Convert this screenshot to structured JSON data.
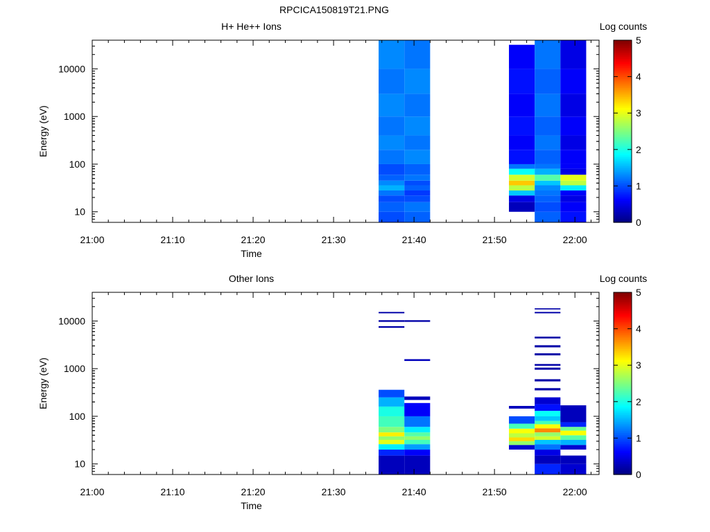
{
  "figure_title": "RPCICA150819T21.PNG",
  "colors": {
    "jet": [
      "#00007f",
      "#0000ff",
      "#007fff",
      "#00ffff",
      "#7fff7f",
      "#ffff00",
      "#ff7f00",
      "#ff0000",
      "#7f0000"
    ],
    "frame": "#000000",
    "background": "#ffffff",
    "gap_rows": "#ffffff"
  },
  "chart_data": [
    {
      "type": "heatmap",
      "title": "H+ He++ Ions",
      "xlabel": "Time",
      "ylabel": "Energy (eV)",
      "x_ticks": [
        "21:00",
        "21:10",
        "21:20",
        "21:30",
        "21:40",
        "21:50",
        "22:00"
      ],
      "x_tick_minutes": [
        0,
        10,
        20,
        30,
        40,
        50,
        60
      ],
      "xlim_minutes": [
        0,
        63
      ],
      "y_scale": "log",
      "ylim": [
        6,
        40000
      ],
      "y_ticks": [
        "10",
        "100",
        "1000",
        "10000"
      ],
      "y_tick_values": [
        10,
        100,
        1000,
        10000
      ],
      "colorbar": {
        "label": "Log counts",
        "range": [
          0,
          5
        ],
        "ticks": [
          "0",
          "1",
          "2",
          "3",
          "4",
          "5"
        ]
      },
      "columns": [
        {
          "t0": 35.6,
          "t1": 38.8,
          "bands": [
            {
              "e0": 6,
              "e1": 10,
              "v": 1.0
            },
            {
              "e0": 10,
              "e1": 16,
              "v": 1.1
            },
            {
              "e0": 16,
              "e1": 22,
              "v": 1.0
            },
            {
              "e0": 22,
              "e1": 28,
              "v": 1.2
            },
            {
              "e0": 28,
              "e1": 36,
              "v": 1.5
            },
            {
              "e0": 36,
              "e1": 45,
              "v": 1.3
            },
            {
              "e0": 45,
              "e1": 60,
              "v": 1.1
            },
            {
              "e0": 60,
              "e1": 100,
              "v": 1.0
            },
            {
              "e0": 100,
              "e1": 200,
              "v": 1.2
            },
            {
              "e0": 200,
              "e1": 400,
              "v": 1.3
            },
            {
              "e0": 400,
              "e1": 1000,
              "v": 1.2
            },
            {
              "e0": 1000,
              "e1": 3000,
              "v": 1.3
            },
            {
              "e0": 3000,
              "e1": 10000,
              "v": 1.2
            },
            {
              "e0": 10000,
              "e1": 40000,
              "v": 1.3
            }
          ]
        },
        {
          "t0": 38.8,
          "t1": 42.0,
          "bands": [
            {
              "e0": 6,
              "e1": 10,
              "v": 1.1
            },
            {
              "e0": 10,
              "e1": 16,
              "v": 1.2
            },
            {
              "e0": 16,
              "e1": 22,
              "v": 1.0
            },
            {
              "e0": 22,
              "e1": 28,
              "v": 0.9
            },
            {
              "e0": 28,
              "e1": 36,
              "v": 1.1
            },
            {
              "e0": 36,
              "e1": 45,
              "v": 1.0
            },
            {
              "e0": 45,
              "e1": 60,
              "v": 1.2
            },
            {
              "e0": 60,
              "e1": 100,
              "v": 1.1
            },
            {
              "e0": 100,
              "e1": 200,
              "v": 1.3
            },
            {
              "e0": 200,
              "e1": 400,
              "v": 1.2
            },
            {
              "e0": 400,
              "e1": 1000,
              "v": 1.3
            },
            {
              "e0": 1000,
              "e1": 3000,
              "v": 1.2
            },
            {
              "e0": 3000,
              "e1": 10000,
              "v": 1.3
            },
            {
              "e0": 10000,
              "e1": 40000,
              "v": 1.2
            }
          ]
        },
        {
          "t0": 51.8,
          "t1": 55.0,
          "bands": [
            {
              "e0": 10,
              "e1": 16,
              "v": 0.3
            },
            {
              "e0": 16,
              "e1": 22,
              "v": 0.5
            },
            {
              "e0": 22,
              "e1": 28,
              "v": 1.6
            },
            {
              "e0": 28,
              "e1": 36,
              "v": 2.8
            },
            {
              "e0": 36,
              "e1": 45,
              "v": 3.4
            },
            {
              "e0": 45,
              "e1": 60,
              "v": 2.9
            },
            {
              "e0": 60,
              "e1": 80,
              "v": 1.9
            },
            {
              "e0": 80,
              "e1": 100,
              "v": 1.2
            },
            {
              "e0": 100,
              "e1": 200,
              "v": 0.7
            },
            {
              "e0": 200,
              "e1": 400,
              "v": 0.6
            },
            {
              "e0": 400,
              "e1": 1000,
              "v": 0.7
            },
            {
              "e0": 1000,
              "e1": 3000,
              "v": 0.6
            },
            {
              "e0": 3000,
              "e1": 10000,
              "v": 0.7
            },
            {
              "e0": 10000,
              "e1": 32000,
              "v": 0.6
            }
          ]
        },
        {
          "t0": 55.0,
          "t1": 58.2,
          "bands": [
            {
              "e0": 6,
              "e1": 10,
              "v": 1.1
            },
            {
              "e0": 10,
              "e1": 16,
              "v": 1.0
            },
            {
              "e0": 16,
              "e1": 22,
              "v": 1.1
            },
            {
              "e0": 22,
              "e1": 28,
              "v": 1.2
            },
            {
              "e0": 28,
              "e1": 36,
              "v": 1.3
            },
            {
              "e0": 36,
              "e1": 45,
              "v": 1.6
            },
            {
              "e0": 45,
              "e1": 60,
              "v": 2.3
            },
            {
              "e0": 60,
              "e1": 80,
              "v": 1.5
            },
            {
              "e0": 80,
              "e1": 100,
              "v": 1.2
            },
            {
              "e0": 100,
              "e1": 200,
              "v": 1.1
            },
            {
              "e0": 200,
              "e1": 400,
              "v": 1.2
            },
            {
              "e0": 400,
              "e1": 1000,
              "v": 1.1
            },
            {
              "e0": 1000,
              "e1": 3000,
              "v": 1.2
            },
            {
              "e0": 3000,
              "e1": 10000,
              "v": 1.1
            },
            {
              "e0": 10000,
              "e1": 40000,
              "v": 1.2
            }
          ]
        },
        {
          "t0": 58.2,
          "t1": 61.4,
          "bands": [
            {
              "e0": 6,
              "e1": 10,
              "v": 0.7
            },
            {
              "e0": 10,
              "e1": 16,
              "v": 0.6
            },
            {
              "e0": 16,
              "e1": 22,
              "v": 0.5
            },
            {
              "e0": 22,
              "e1": 28,
              "v": 0.6
            },
            {
              "e0": 28,
              "e1": 36,
              "v": 1.8
            },
            {
              "e0": 36,
              "e1": 45,
              "v": 2.8
            },
            {
              "e0": 45,
              "e1": 60,
              "v": 3.0
            },
            {
              "e0": 60,
              "e1": 80,
              "v": 0.5
            },
            {
              "e0": 80,
              "e1": 100,
              "v": 0.6
            },
            {
              "e0": 100,
              "e1": 200,
              "v": 0.6
            },
            {
              "e0": 200,
              "e1": 400,
              "v": 0.5
            },
            {
              "e0": 400,
              "e1": 1000,
              "v": 0.6
            },
            {
              "e0": 1000,
              "e1": 3000,
              "v": 0.5
            },
            {
              "e0": 3000,
              "e1": 10000,
              "v": 0.6
            },
            {
              "e0": 10000,
              "e1": 40000,
              "v": 0.5
            }
          ]
        }
      ]
    },
    {
      "type": "heatmap",
      "title": "Other Ions",
      "xlabel": "Time",
      "ylabel": "Energy (eV)",
      "x_ticks": [
        "21:00",
        "21:10",
        "21:20",
        "21:30",
        "21:40",
        "21:50",
        "22:00"
      ],
      "x_tick_minutes": [
        0,
        10,
        20,
        30,
        40,
        50,
        60
      ],
      "xlim_minutes": [
        0,
        63
      ],
      "y_scale": "log",
      "ylim": [
        6,
        40000
      ],
      "y_ticks": [
        "10",
        "100",
        "1000",
        "10000"
      ],
      "y_tick_values": [
        10,
        100,
        1000,
        10000
      ],
      "colorbar": {
        "label": "Log counts",
        "range": [
          0,
          5
        ],
        "ticks": [
          "0",
          "1",
          "2",
          "3",
          "4",
          "5"
        ]
      },
      "columns": [
        {
          "t0": 35.6,
          "t1": 38.8,
          "bands": [
            {
              "e0": 6,
              "e1": 15,
              "v": 0.3
            },
            {
              "e0": 15,
              "e1": 20,
              "v": 0.8
            },
            {
              "e0": 20,
              "e1": 26,
              "v": 1.8
            },
            {
              "e0": 26,
              "e1": 32,
              "v": 3.0
            },
            {
              "e0": 32,
              "e1": 38,
              "v": 2.6
            },
            {
              "e0": 38,
              "e1": 46,
              "v": 3.2
            },
            {
              "e0": 46,
              "e1": 60,
              "v": 2.5
            },
            {
              "e0": 60,
              "e1": 100,
              "v": 2.2
            },
            {
              "e0": 100,
              "e1": 160,
              "v": 2.0
            },
            {
              "e0": 160,
              "e1": 250,
              "v": 1.5
            },
            {
              "e0": 250,
              "e1": 360,
              "v": 1.0
            },
            {
              "e0": 7200,
              "e1": 7800,
              "v": 0.2
            },
            {
              "e0": 9600,
              "e1": 10400,
              "v": 0.2
            },
            {
              "e0": 14500,
              "e1": 15500,
              "v": 0.2
            }
          ]
        },
        {
          "t0": 38.8,
          "t1": 42.0,
          "bands": [
            {
              "e0": 6,
              "e1": 15,
              "v": 0.3
            },
            {
              "e0": 15,
              "e1": 20,
              "v": 0.6
            },
            {
              "e0": 20,
              "e1": 26,
              "v": 1.4
            },
            {
              "e0": 26,
              "e1": 32,
              "v": 2.2
            },
            {
              "e0": 32,
              "e1": 38,
              "v": 2.6
            },
            {
              "e0": 38,
              "e1": 46,
              "v": 2.3
            },
            {
              "e0": 46,
              "e1": 60,
              "v": 1.8
            },
            {
              "e0": 60,
              "e1": 100,
              "v": 1.2
            },
            {
              "e0": 100,
              "e1": 190,
              "v": 0.6
            },
            {
              "e0": 220,
              "e1": 260,
              "v": 0.3
            },
            {
              "e0": 1450,
              "e1": 1580,
              "v": 0.3
            },
            {
              "e0": 9600,
              "e1": 10400,
              "v": 0.2
            }
          ]
        },
        {
          "t0": 51.8,
          "t1": 55.0,
          "bands": [
            {
              "e0": 20,
              "e1": 25,
              "v": 0.4
            },
            {
              "e0": 25,
              "e1": 30,
              "v": 2.6
            },
            {
              "e0": 30,
              "e1": 36,
              "v": 3.3
            },
            {
              "e0": 36,
              "e1": 44,
              "v": 2.8
            },
            {
              "e0": 44,
              "e1": 55,
              "v": 3.1
            },
            {
              "e0": 55,
              "e1": 70,
              "v": 2.2
            },
            {
              "e0": 70,
              "e1": 100,
              "v": 1.0
            },
            {
              "e0": 145,
              "e1": 165,
              "v": 0.3
            }
          ]
        },
        {
          "t0": 55.0,
          "t1": 58.2,
          "bands": [
            {
              "e0": 6,
              "e1": 10,
              "v": 0.8
            },
            {
              "e0": 10,
              "e1": 15,
              "v": 0.3
            },
            {
              "e0": 15,
              "e1": 20,
              "v": 0.5
            },
            {
              "e0": 20,
              "e1": 26,
              "v": 1.2
            },
            {
              "e0": 26,
              "e1": 32,
              "v": 1.6
            },
            {
              "e0": 32,
              "e1": 38,
              "v": 2.9
            },
            {
              "e0": 38,
              "e1": 46,
              "v": 2.6
            },
            {
              "e0": 46,
              "e1": 56,
              "v": 3.7
            },
            {
              "e0": 56,
              "e1": 68,
              "v": 3.1
            },
            {
              "e0": 68,
              "e1": 80,
              "v": 2.2
            },
            {
              "e0": 80,
              "e1": 100,
              "v": 1.6
            },
            {
              "e0": 100,
              "e1": 130,
              "v": 1.9
            },
            {
              "e0": 130,
              "e1": 180,
              "v": 0.7
            },
            {
              "e0": 180,
              "e1": 250,
              "v": 0.4
            },
            {
              "e0": 350,
              "e1": 390,
              "v": 0.2
            },
            {
              "e0": 540,
              "e1": 600,
              "v": 0.2
            },
            {
              "e0": 950,
              "e1": 1050,
              "v": 0.2
            },
            {
              "e0": 1150,
              "e1": 1250,
              "v": 0.2
            },
            {
              "e0": 1900,
              "e1": 2100,
              "v": 0.2
            },
            {
              "e0": 2800,
              "e1": 3100,
              "v": 0.2
            },
            {
              "e0": 4300,
              "e1": 4700,
              "v": 0.2
            },
            {
              "e0": 14500,
              "e1": 15500,
              "v": 0.2
            },
            {
              "e0": 17500,
              "e1": 18500,
              "v": 0.2
            }
          ]
        },
        {
          "t0": 58.2,
          "t1": 61.4,
          "bands": [
            {
              "e0": 6,
              "e1": 10,
              "v": 0.4
            },
            {
              "e0": 10,
              "e1": 15,
              "v": 0.3
            },
            {
              "e0": 20,
              "e1": 25,
              "v": 0.4
            },
            {
              "e0": 25,
              "e1": 32,
              "v": 1.5
            },
            {
              "e0": 32,
              "e1": 40,
              "v": 2.3
            },
            {
              "e0": 40,
              "e1": 50,
              "v": 3.1
            },
            {
              "e0": 50,
              "e1": 60,
              "v": 2.4
            },
            {
              "e0": 60,
              "e1": 75,
              "v": 0.8
            },
            {
              "e0": 75,
              "e1": 170,
              "v": 0.3
            }
          ]
        }
      ]
    }
  ]
}
